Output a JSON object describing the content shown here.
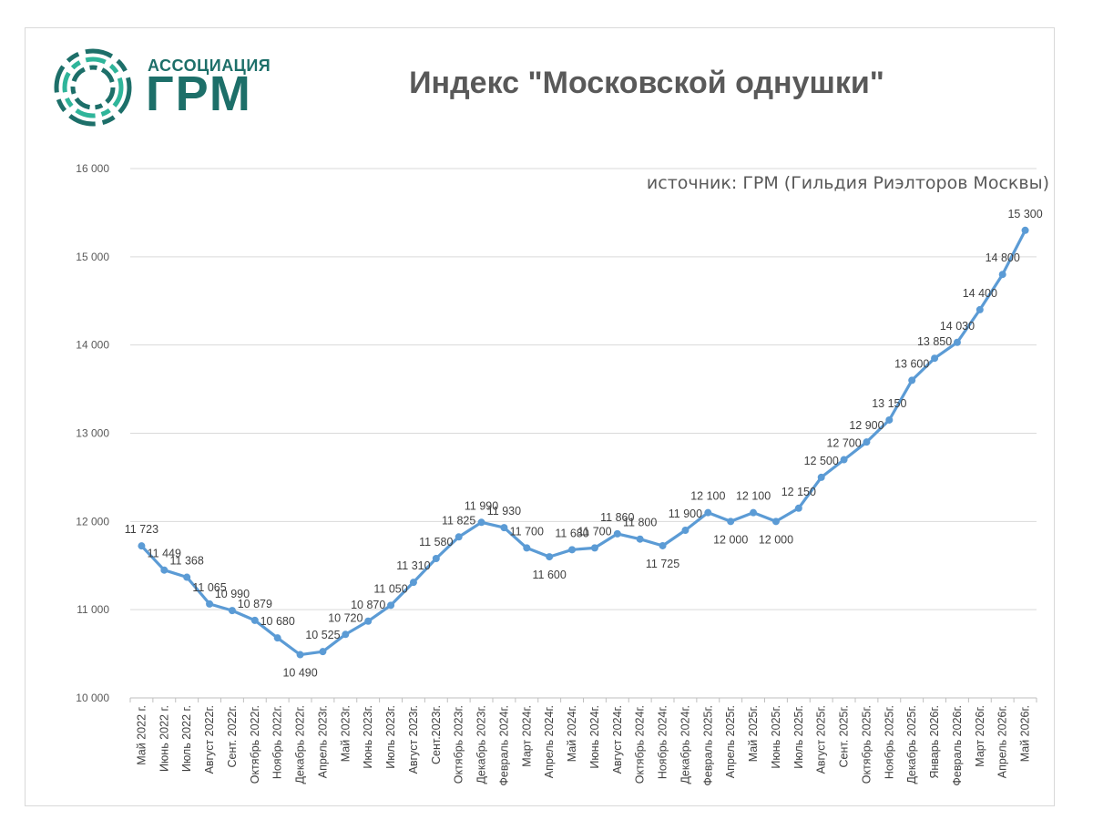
{
  "logo": {
    "line1": "АССОЦИАЦИЯ",
    "line2": "ГРМ",
    "color": "#1d6f69",
    "accent": "#2fb59a"
  },
  "chart_data": {
    "type": "line",
    "title": "Индекс \"Московской однушки\"",
    "source": "источник: ГРМ (Гильдия Риэлторов Москвы)",
    "ylim": [
      10000,
      16000
    ],
    "yticks": [
      "10 000",
      "11 000",
      "12 000",
      "13 000",
      "14 000",
      "15 000",
      "16 000"
    ],
    "grid": true,
    "line_color": "#5b9bd5",
    "categories": [
      "Май 2022 г.",
      "Июнь 2022 г.",
      "Июль 2022 г.",
      "Август 2022г.",
      "Сент. 2022г.",
      "Октябрь 2022г.",
      "Ноябрь 2022г.",
      "Декабрь 2022г.",
      "Апрель 2023г.",
      "Май 2023г.",
      "Июнь 2023г.",
      "Июль 2023г.",
      "Август 2023г.",
      "Сент.2023г.",
      "Октябрь 2023г.",
      "Декабрь 2023г.",
      "Февраль 2024г.",
      "Март 2024г.",
      "Апрель 2024г.",
      "Май 2024г.",
      "Июнь 2024г.",
      "Август 2024г.",
      "Октябрь 2024г.",
      "Ноябрь 2024г.",
      "Декабрь 2024г.",
      "Февраль 2025г.",
      "Апрель 2025г.",
      "Май 2025г.",
      "Июнь 2025г.",
      "Июль 2025г.",
      "Август 2025г.",
      "Сент. 2025г.",
      "Октябрь 2025г.",
      "Ноябрь 2025г.",
      "Декабрь 2025г.",
      "Январь 2026г.",
      "Февраль 2026г.",
      "Март 2026г.",
      "Апрель 2026г.",
      "Май 2026г."
    ],
    "values": [
      11723,
      11449,
      11368,
      11065,
      10990,
      10879,
      10680,
      10490,
      10525,
      10720,
      10870,
      11050,
      11310,
      11580,
      11825,
      11990,
      11930,
      11700,
      11600,
      11680,
      11700,
      11860,
      11800,
      11725,
      11900,
      12100,
      12000,
      12100,
      12000,
      12150,
      12500,
      12700,
      12900,
      13150,
      13600,
      13850,
      14030,
      14400,
      14800,
      15300
    ],
    "value_labels": [
      "11 723",
      "11 449",
      "11 368",
      "11 065",
      "10 990",
      "10 879",
      "10 680",
      "10 490",
      "10 525",
      "10 720",
      "10 870",
      "11 050",
      "11 310",
      "11 580",
      "11 825",
      "11 990",
      "11 930",
      "11 700",
      "11 600",
      "11 680",
      "11 700",
      "11 860",
      "11 800",
      "11 725",
      "11 900",
      "12 100",
      "12 000",
      "12 100",
      "12 000",
      "12 150",
      "12 500",
      "12 700",
      "12 900",
      "13 150",
      "13 600",
      "13 850",
      "14 030",
      "14 400",
      "14 800",
      "15 300"
    ]
  }
}
